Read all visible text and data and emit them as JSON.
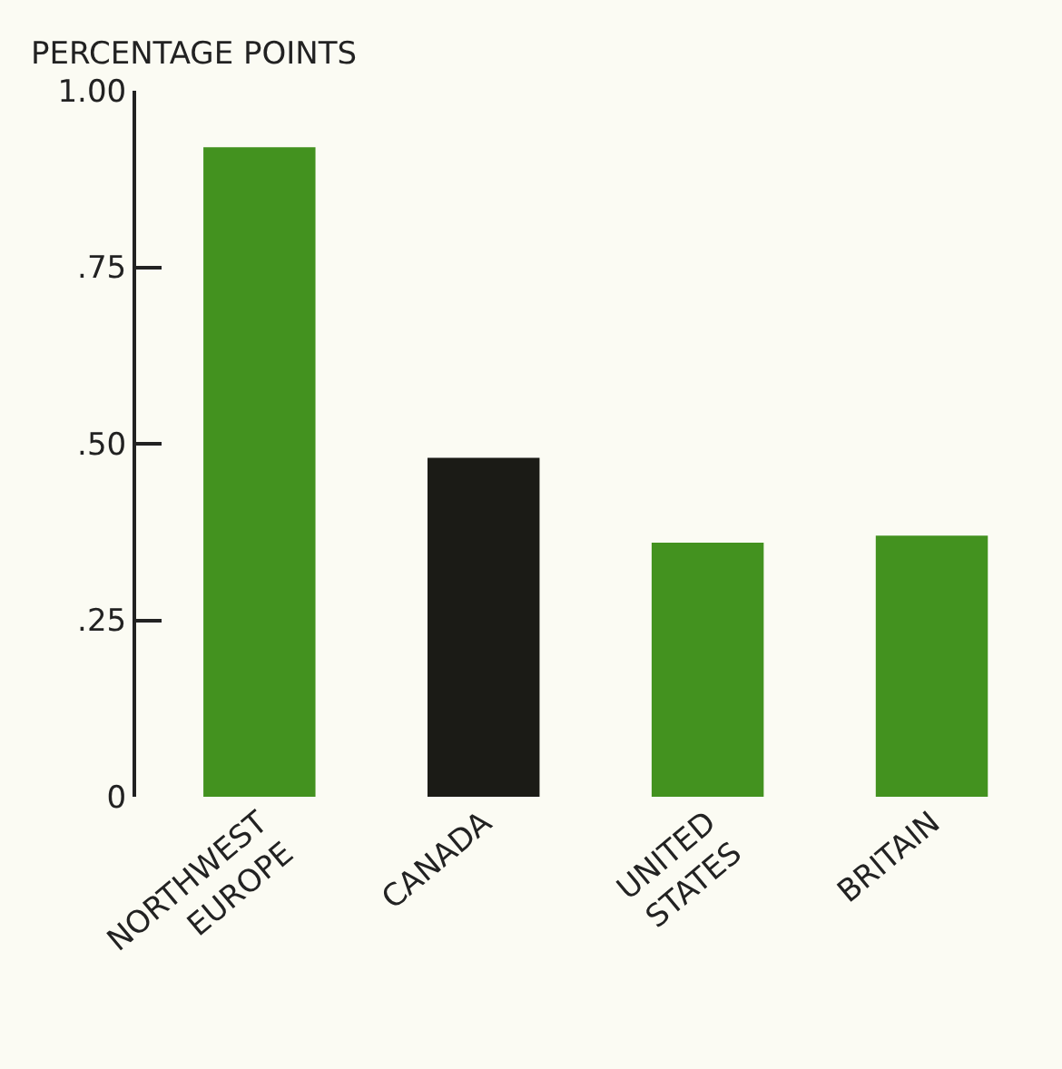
{
  "chart_data": {
    "type": "bar",
    "ylabel": "PERCENTAGE POINTS",
    "categories": [
      "NORTHWEST EUROPE",
      "CANADA",
      "UNITED STATES",
      "BRITAIN"
    ],
    "values": [
      0.92,
      0.48,
      0.36,
      0.37
    ],
    "colors": [
      "#43921f",
      "#1b1b16",
      "#43921f",
      "#43921f"
    ],
    "ylim": [
      0,
      1
    ],
    "yticks": [
      0,
      {
        "value": 0.25,
        "label": ".25"
      },
      {
        "value": 0.5,
        "label": ".50"
      },
      {
        "value": 0.75,
        "label": ".75"
      },
      {
        "value": 1,
        "label": "1.00"
      }
    ],
    "grid": false
  }
}
